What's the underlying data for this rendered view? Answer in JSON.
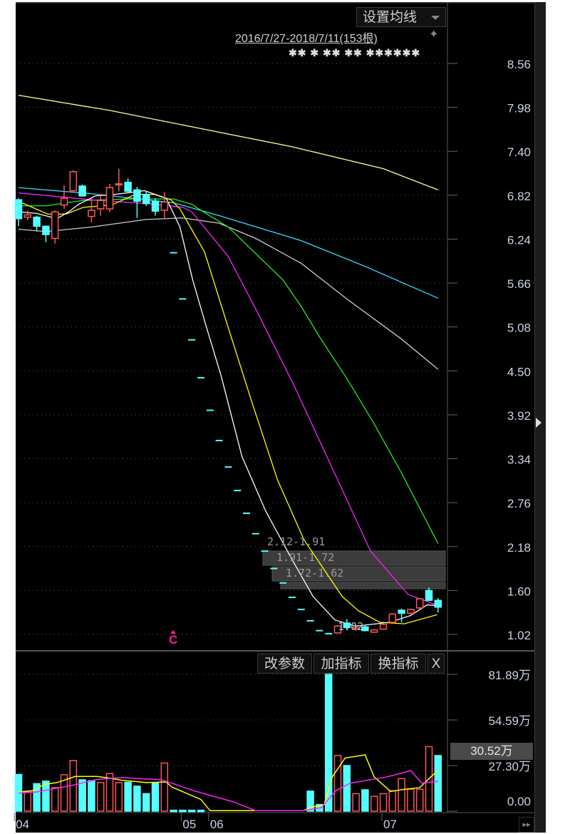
{
  "toolbar": {
    "ma_setting_label": "设置均线",
    "date_range": "2016/7/27-2018/7/11(153根)",
    "pin_icon": "pin-icon",
    "event_markers": "✱✱ ✱ ✱✱ ✱✱ ✱✱✱✱✱✱"
  },
  "volume_toolbar": {
    "edit_params": "改参数",
    "add_indicator": "加指标",
    "switch_indicator": "换指标",
    "close": "X"
  },
  "colors": {
    "background": "#000000",
    "up": "#ff5555",
    "down": "#55ffff",
    "grid": "#555555",
    "axis_text": "#c8d2e6"
  },
  "chart_data": [
    {
      "type": "candlestick",
      "panel": "price",
      "y_ticks": [
        "8.56",
        "7.98",
        "7.40",
        "6.82",
        "6.24",
        "5.66",
        "5.08",
        "4.50",
        "3.92",
        "3.34",
        "2.76",
        "2.18",
        "1.60",
        "1.02"
      ],
      "ylim": [
        1.02,
        8.56
      ],
      "x_ticks": [
        {
          "label": "04",
          "index": -0.3
        },
        {
          "label": "05",
          "index": 18
        },
        {
          "label": "06",
          "index": 21
        },
        {
          "label": "07",
          "index": 40
        }
      ],
      "grid": true,
      "candles": [
        {
          "i": 0,
          "o": 6.76,
          "h": 6.78,
          "l": 6.41,
          "c": 6.51
        },
        {
          "i": 1,
          "o": 6.53,
          "h": 6.62,
          "l": 6.49,
          "c": 6.56
        },
        {
          "i": 2,
          "o": 6.53,
          "h": 6.55,
          "l": 6.34,
          "c": 6.41
        },
        {
          "i": 3,
          "o": 6.41,
          "h": 6.42,
          "l": 6.2,
          "c": 6.3
        },
        {
          "i": 4,
          "o": 6.25,
          "h": 6.62,
          "l": 6.18,
          "c": 6.6
        },
        {
          "i": 5,
          "o": 6.69,
          "h": 6.95,
          "l": 6.64,
          "c": 6.78
        },
        {
          "i": 6,
          "o": 6.88,
          "h": 7.15,
          "l": 6.86,
          "c": 7.13
        },
        {
          "i": 7,
          "o": 6.94,
          "h": 6.96,
          "l": 6.8,
          "c": 6.81
        },
        {
          "i": 8,
          "o": 6.54,
          "h": 6.78,
          "l": 6.46,
          "c": 6.62
        },
        {
          "i": 9,
          "o": 6.64,
          "h": 6.84,
          "l": 6.55,
          "c": 6.75
        },
        {
          "i": 10,
          "o": 6.64,
          "h": 6.97,
          "l": 6.6,
          "c": 6.92
        },
        {
          "i": 11,
          "o": 6.96,
          "h": 7.17,
          "l": 6.87,
          "c": 6.97
        },
        {
          "i": 12,
          "o": 6.99,
          "h": 7.04,
          "l": 6.86,
          "c": 6.87
        },
        {
          "i": 13,
          "o": 6.89,
          "h": 6.93,
          "l": 6.52,
          "c": 6.74
        },
        {
          "i": 14,
          "o": 6.83,
          "h": 6.87,
          "l": 6.68,
          "c": 6.71
        },
        {
          "i": 15,
          "o": 6.74,
          "h": 6.78,
          "l": 6.55,
          "c": 6.61
        },
        {
          "i": 16,
          "o": 6.62,
          "h": 6.86,
          "l": 6.5,
          "c": 6.73
        },
        {
          "i": 17,
          "o": 6.06,
          "h": 6.06,
          "l": 6.06,
          "c": 6.06
        },
        {
          "i": 18,
          "o": 5.45,
          "h": 5.45,
          "l": 5.45,
          "c": 5.45
        },
        {
          "i": 19,
          "o": 4.91,
          "h": 4.91,
          "l": 4.91,
          "c": 4.91
        },
        {
          "i": 20,
          "o": 4.41,
          "h": 4.41,
          "l": 4.41,
          "c": 4.41
        },
        {
          "i": 21,
          "o": 3.98,
          "h": 3.98,
          "l": 3.98,
          "c": 3.98
        },
        {
          "i": 22,
          "o": 3.58,
          "h": 3.58,
          "l": 3.58,
          "c": 3.58
        },
        {
          "i": 23,
          "o": 3.23,
          "h": 3.23,
          "l": 3.23,
          "c": 3.23
        },
        {
          "i": 24,
          "o": 2.92,
          "h": 2.92,
          "l": 2.92,
          "c": 2.92
        },
        {
          "i": 25,
          "o": 2.62,
          "h": 2.62,
          "l": 2.62,
          "c": 2.62
        },
        {
          "i": 26,
          "o": 2.35,
          "h": 2.35,
          "l": 2.35,
          "c": 2.35
        },
        {
          "i": 27,
          "o": 2.12,
          "h": 2.12,
          "l": 2.12,
          "c": 2.12
        },
        {
          "i": 28,
          "o": 1.89,
          "h": 1.89,
          "l": 1.89,
          "c": 1.89
        },
        {
          "i": 29,
          "o": 1.7,
          "h": 1.7,
          "l": 1.7,
          "c": 1.7
        },
        {
          "i": 30,
          "o": 1.51,
          "h": 1.51,
          "l": 1.51,
          "c": 1.51
        },
        {
          "i": 31,
          "o": 1.35,
          "h": 1.35,
          "l": 1.35,
          "c": 1.35
        },
        {
          "i": 32,
          "o": 1.2,
          "h": 1.2,
          "l": 1.2,
          "c": 1.2
        },
        {
          "i": 33,
          "o": 1.07,
          "h": 1.07,
          "l": 1.07,
          "c": 1.07
        },
        {
          "i": 34,
          "o": 1.03,
          "h": 1.03,
          "l": 1.03,
          "c": 1.03
        },
        {
          "i": 35,
          "o": 1.04,
          "h": 1.14,
          "l": 1.03,
          "c": 1.13
        },
        {
          "i": 36,
          "o": 1.17,
          "h": 1.22,
          "l": 1.08,
          "c": 1.11
        },
        {
          "i": 37,
          "o": 1.09,
          "h": 1.13,
          "l": 1.07,
          "c": 1.11
        },
        {
          "i": 38,
          "o": 1.12,
          "h": 1.14,
          "l": 1.06,
          "c": 1.07
        },
        {
          "i": 39,
          "o": 1.05,
          "h": 1.09,
          "l": 1.04,
          "c": 1.08
        },
        {
          "i": 40,
          "o": 1.09,
          "h": 1.16,
          "l": 1.08,
          "c": 1.15
        },
        {
          "i": 41,
          "o": 1.18,
          "h": 1.3,
          "l": 1.17,
          "c": 1.29
        },
        {
          "i": 42,
          "o": 1.34,
          "h": 1.36,
          "l": 1.18,
          "c": 1.3
        },
        {
          "i": 43,
          "o": 1.3,
          "h": 1.36,
          "l": 1.29,
          "c": 1.35
        },
        {
          "i": 44,
          "o": 1.37,
          "h": 1.5,
          "l": 1.36,
          "c": 1.49
        },
        {
          "i": 45,
          "o": 1.6,
          "h": 1.64,
          "l": 1.46,
          "c": 1.47
        },
        {
          "i": 46,
          "o": 1.47,
          "h": 1.5,
          "l": 1.31,
          "c": 1.38
        }
      ],
      "moving_averages": [
        {
          "color": "#ffff99",
          "points": [
            [
              0,
              8.14
            ],
            [
              10,
              7.94
            ],
            [
              20,
              7.7
            ],
            [
              30,
              7.46
            ],
            [
              40,
              7.17
            ],
            [
              46,
              6.89
            ]
          ]
        },
        {
          "color": "#33ddff",
          "points": [
            [
              0,
              6.92
            ],
            [
              8,
              6.84
            ],
            [
              17,
              6.72
            ],
            [
              22,
              6.55
            ],
            [
              31,
              6.22
            ],
            [
              38,
              5.88
            ],
            [
              46,
              5.46
            ]
          ]
        },
        {
          "color": "#cccccc",
          "points": [
            [
              0,
              6.37
            ],
            [
              3,
              6.34
            ],
            [
              8,
              6.4
            ],
            [
              14,
              6.5
            ],
            [
              18,
              6.52
            ],
            [
              22,
              6.45
            ],
            [
              26,
              6.25
            ],
            [
              31,
              5.92
            ],
            [
              36,
              5.45
            ],
            [
              42,
              4.92
            ],
            [
              46,
              4.52
            ]
          ]
        },
        {
          "color": "#22ee22",
          "points": [
            [
              0,
              6.68
            ],
            [
              3,
              6.68
            ],
            [
              7,
              6.75
            ],
            [
              12,
              6.77
            ],
            [
              17,
              6.77
            ],
            [
              19,
              6.7
            ],
            [
              20,
              6.62
            ],
            [
              23,
              6.4
            ],
            [
              26,
              6.05
            ],
            [
              29,
              5.7
            ],
            [
              31,
              5.35
            ],
            [
              33,
              4.95
            ],
            [
              36,
              4.4
            ],
            [
              39,
              3.8
            ],
            [
              42,
              3.15
            ],
            [
              46,
              2.22
            ]
          ]
        },
        {
          "color": "#ff22ff",
          "points": [
            [
              0,
              6.85
            ],
            [
              8,
              6.76
            ],
            [
              15,
              6.7
            ],
            [
              18,
              6.66
            ],
            [
              19,
              6.6
            ],
            [
              23,
              6.01
            ],
            [
              26,
              5.32
            ],
            [
              30.2,
              4.31
            ],
            [
              35,
              3.06
            ],
            [
              38.6,
              2.12
            ],
            [
              42.7,
              1.55
            ],
            [
              46,
              1.4
            ]
          ]
        },
        {
          "color": "#ffff00",
          "points": [
            [
              0,
              6.74
            ],
            [
              3.2,
              6.57
            ],
            [
              5.2,
              6.57
            ],
            [
              7.1,
              6.66
            ],
            [
              10.2,
              6.69
            ],
            [
              12.8,
              6.83
            ],
            [
              14.9,
              6.83
            ],
            [
              16.7,
              6.76
            ],
            [
              17.7,
              6.64
            ],
            [
              20.4,
              6.07
            ],
            [
              23,
              5.07
            ],
            [
              25.5,
              4.12
            ],
            [
              28.4,
              3.06
            ],
            [
              31.3,
              2.27
            ],
            [
              35.5,
              1.52
            ],
            [
              37.3,
              1.33
            ],
            [
              39.6,
              1.18
            ],
            [
              42.3,
              1.16
            ],
            [
              45.9,
              1.28
            ]
          ]
        },
        {
          "color": "#ffffff",
          "points": [
            [
              0,
              6.6
            ],
            [
              2,
              6.58
            ],
            [
              4.2,
              6.51
            ],
            [
              5.5,
              6.6
            ],
            [
              6.6,
              6.7
            ],
            [
              8.4,
              6.81
            ],
            [
              10.5,
              6.83
            ],
            [
              12.6,
              6.86
            ],
            [
              13.8,
              6.88
            ],
            [
              16.2,
              6.78
            ],
            [
              17.7,
              6.4
            ],
            [
              19.1,
              5.7
            ],
            [
              20.4,
              5.16
            ],
            [
              22.2,
              4.44
            ],
            [
              24.5,
              3.37
            ],
            [
              27.1,
              2.65
            ],
            [
              29.8,
              2.05
            ],
            [
              32.3,
              1.52
            ],
            [
              34.7,
              1.21
            ],
            [
              37,
              1.13
            ],
            [
              40.7,
              1.18
            ],
            [
              43,
              1.27
            ],
            [
              44.8,
              1.41
            ],
            [
              45.9,
              1.4
            ]
          ]
        }
      ],
      "chip_ranges": [
        "2.12-1.91",
        "1.91-1.72",
        "1.72-1.62"
      ],
      "low_label": "1.02",
      "signal_marker": "C"
    },
    {
      "type": "bar",
      "panel": "volume",
      "y_ticks": [
        "81.89万",
        "54.59万",
        "27.30万",
        "0.00"
      ],
      "ylim": [
        0,
        81.89
      ],
      "unit": "万",
      "highlight_value": "30.52万",
      "values": [
        22.0,
        11.5,
        16.5,
        18.0,
        14.1,
        21.8,
        30.3,
        18.8,
        18.3,
        17.1,
        22.5,
        17.1,
        17.3,
        15.0,
        10.5,
        17.1,
        28.8,
        0.6,
        0.6,
        0.6,
        0.6,
        0,
        0,
        0,
        0,
        0,
        0,
        0,
        0,
        0,
        0,
        0,
        12.0,
        4.0,
        81.89,
        33.3,
        27.3,
        10.5,
        12.8,
        8.9,
        10.5,
        12.3,
        19.5,
        13.1,
        13.1,
        38.6,
        33.3
      ],
      "up": [
        false,
        true,
        false,
        false,
        true,
        true,
        true,
        false,
        false,
        true,
        true,
        true,
        false,
        false,
        false,
        false,
        true,
        false,
        false,
        false,
        false,
        false,
        false,
        false,
        false,
        false,
        false,
        false,
        false,
        false,
        false,
        false,
        false,
        false,
        false,
        true,
        false,
        true,
        false,
        true,
        true,
        true,
        true,
        true,
        true,
        true,
        false
      ],
      "moving_averages": [
        {
          "color": "#ffff00",
          "points": [
            [
              0,
              11.5
            ],
            [
              1.6,
              12.3
            ],
            [
              2.8,
              16
            ],
            [
              4.2,
              17.1
            ],
            [
              6.2,
              20.8
            ],
            [
              8.6,
              20.8
            ],
            [
              10,
              19.8
            ],
            [
              11.2,
              18.6
            ],
            [
              14,
              17.1
            ],
            [
              16.2,
              17.5
            ],
            [
              16.8,
              14.5
            ],
            [
              20,
              7
            ],
            [
              21,
              0.3
            ],
            [
              31.2,
              0.3
            ],
            [
              32.2,
              2.5
            ],
            [
              33.5,
              3.7
            ],
            [
              34.4,
              20.5
            ],
            [
              35.8,
              31.8
            ],
            [
              38,
              33.7
            ],
            [
              39,
              20.5
            ],
            [
              40.8,
              11.8
            ],
            [
              42.2,
              13
            ],
            [
              44,
              14.1
            ],
            [
              45.2,
              20.5
            ],
            [
              46,
              24.3
            ]
          ]
        },
        {
          "color": "#ff22ff",
          "points": [
            [
              0,
              10.8
            ],
            [
              2,
              11.5
            ],
            [
              6,
              15.6
            ],
            [
              8.6,
              19
            ],
            [
              11.2,
              20.1
            ],
            [
              15.6,
              18.8
            ],
            [
              16.4,
              17.5
            ],
            [
              19.2,
              12.3
            ],
            [
              23.6,
              5.5
            ],
            [
              26,
              0.3
            ],
            [
              31.2,
              0.3
            ],
            [
              33.2,
              2.1
            ],
            [
              34.8,
              12.3
            ],
            [
              36.4,
              16.8
            ],
            [
              40.4,
              20.5
            ],
            [
              43,
              24.3
            ],
            [
              44.2,
              16.8
            ],
            [
              46,
              17.8
            ]
          ]
        }
      ]
    }
  ]
}
